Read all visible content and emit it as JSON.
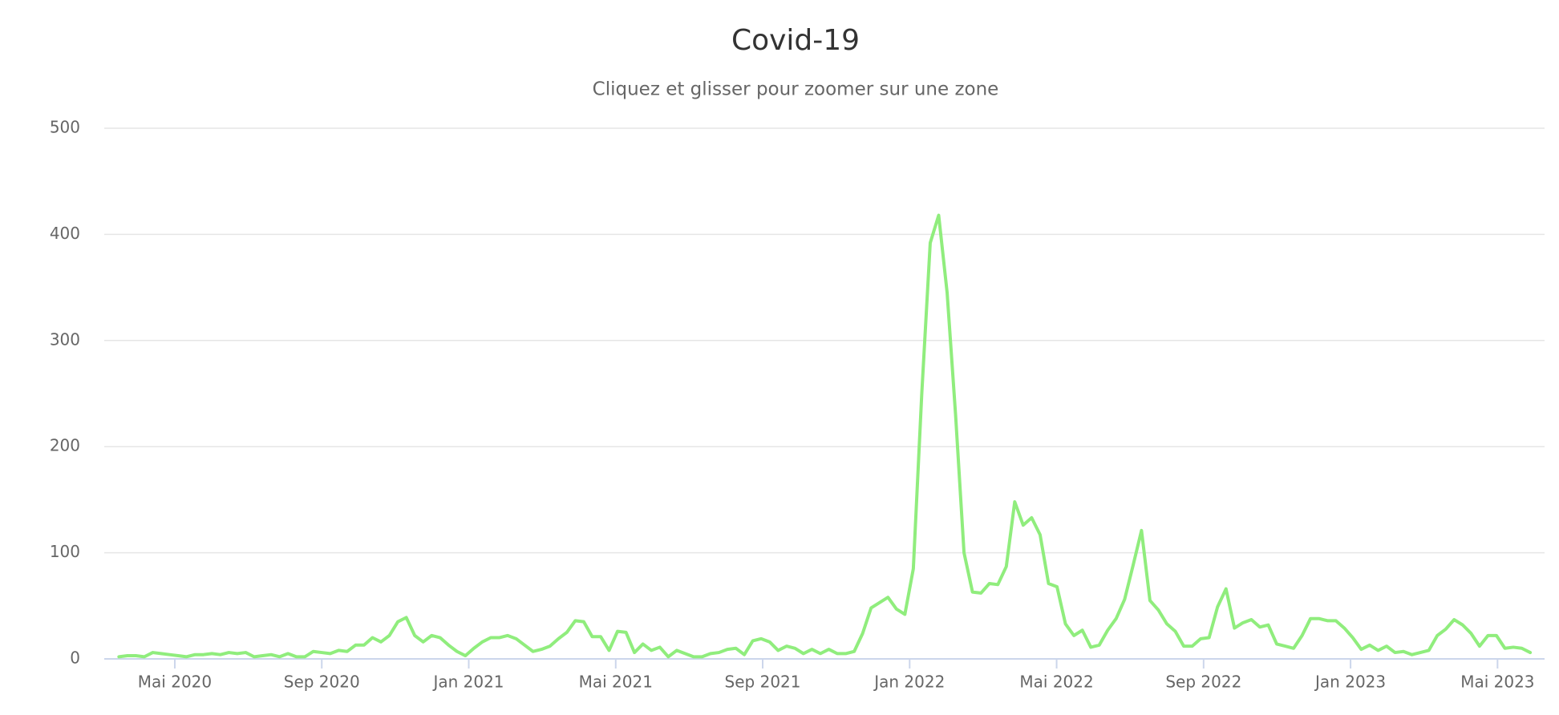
{
  "chart_data": {
    "type": "line",
    "title": "Covid-19",
    "subtitle": "Cliquez et glisser pour zoomer sur une zone",
    "color": "#90ed7d",
    "grid": true,
    "ylim": [
      0,
      500
    ],
    "yticks": [
      0,
      100,
      200,
      300,
      400,
      500
    ],
    "xlim": [
      2.08,
      41.28
    ],
    "xticks": [
      {
        "value": 4,
        "label": "Mai 2020"
      },
      {
        "value": 8,
        "label": "Sep 2020"
      },
      {
        "value": 12,
        "label": "Jan 2021"
      },
      {
        "value": 16,
        "label": "Mai 2021"
      },
      {
        "value": 20,
        "label": "Sep 2021"
      },
      {
        "value": 24,
        "label": "Jan 2022"
      },
      {
        "value": 28,
        "label": "Mai 2022"
      },
      {
        "value": 32,
        "label": "Sep 2022"
      },
      {
        "value": 36,
        "label": "Jan 2023"
      },
      {
        "value": 40,
        "label": "Mai 2023"
      }
    ],
    "x": [
      2.48,
      2.71,
      2.94,
      3.17,
      3.4,
      3.63,
      3.86,
      4.09,
      4.32,
      4.55,
      4.78,
      5.01,
      5.24,
      5.47,
      5.7,
      5.93,
      6.16,
      6.39,
      6.62,
      6.85,
      7.08,
      7.31,
      7.54,
      7.77,
      8,
      8.23,
      8.46,
      8.69,
      8.92,
      9.15,
      9.38,
      9.61,
      9.84,
      10.07,
      10.3,
      10.53,
      10.76,
      10.99,
      11.22,
      11.45,
      11.68,
      11.91,
      12.14,
      12.37,
      12.6,
      12.83,
      13.06,
      13.29,
      13.52,
      13.75,
      13.98,
      14.21,
      14.44,
      14.67,
      14.9,
      15.13,
      15.36,
      15.59,
      15.82,
      16.05,
      16.28,
      16.51,
      16.74,
      16.97,
      17.2,
      17.43,
      17.66,
      17.89,
      18.12,
      18.35,
      18.58,
      18.81,
      19.04,
      19.27,
      19.5,
      19.73,
      19.96,
      20.19,
      20.42,
      20.65,
      20.88,
      21.11,
      21.34,
      21.57,
      21.8,
      22.03,
      22.26,
      22.49,
      22.72,
      22.95,
      23.18,
      23.41,
      23.64,
      23.87,
      24.1,
      24.33,
      24.56,
      24.79,
      25.02,
      25.25,
      25.48,
      25.71,
      25.94,
      26.17,
      26.4,
      26.63,
      26.86,
      27.09,
      27.32,
      27.55,
      27.78,
      28.01,
      28.24,
      28.47,
      28.7,
      28.93,
      29.16,
      29.39,
      29.62,
      29.85,
      30.08,
      30.31,
      30.54,
      30.77,
      31,
      31.23,
      31.46,
      31.69,
      31.92,
      32.15,
      32.38,
      32.61,
      32.84,
      33.07,
      33.3,
      33.53,
      33.76,
      33.99,
      34.22,
      34.45,
      34.68,
      34.91,
      35.14,
      35.37,
      35.6,
      35.83,
      36.06,
      36.29,
      36.52,
      36.75,
      36.98,
      37.21,
      37.44,
      37.67,
      37.9,
      38.13,
      38.36,
      38.59,
      38.82,
      39.05,
      39.28,
      39.51,
      39.74,
      39.97,
      40.2,
      40.43,
      40.66,
      40.89
    ],
    "values": [
      2,
      3,
      3,
      2,
      6,
      5,
      4,
      3,
      2,
      4,
      4,
      5,
      4,
      6,
      5,
      6,
      2,
      3,
      4,
      2,
      5,
      2,
      2,
      7,
      6,
      5,
      8,
      7,
      13,
      13,
      20,
      16,
      22,
      35,
      39,
      22,
      16,
      22,
      20,
      13,
      7,
      3,
      10,
      16,
      20,
      20,
      22,
      19,
      13,
      7,
      9,
      12,
      19,
      25,
      36,
      35,
      21,
      21,
      8,
      26,
      25,
      6,
      14,
      8,
      11,
      2,
      8,
      5,
      2,
      2,
      5,
      6,
      9,
      10,
      4,
      17,
      19,
      16,
      8,
      12,
      10,
      5,
      9,
      5,
      9,
      5,
      5,
      7,
      24,
      48,
      53,
      58,
      47,
      42,
      85,
      250,
      392,
      418,
      345,
      230,
      100,
      63,
      62,
      71,
      70,
      87,
      148,
      126,
      133,
      117,
      71,
      68,
      33,
      22,
      27,
      11,
      13,
      27,
      38,
      56,
      88,
      121,
      55,
      46,
      33,
      26,
      12,
      12,
      19,
      20,
      49,
      66,
      29,
      34,
      37,
      30,
      32,
      14,
      12,
      10,
      22,
      38,
      38,
      36,
      36,
      29,
      20,
      9,
      13,
      8,
      12,
      6,
      7,
      4,
      6,
      8,
      22,
      28,
      37,
      32,
      24,
      12,
      22,
      22,
      10,
      11,
      10,
      6
    ]
  }
}
